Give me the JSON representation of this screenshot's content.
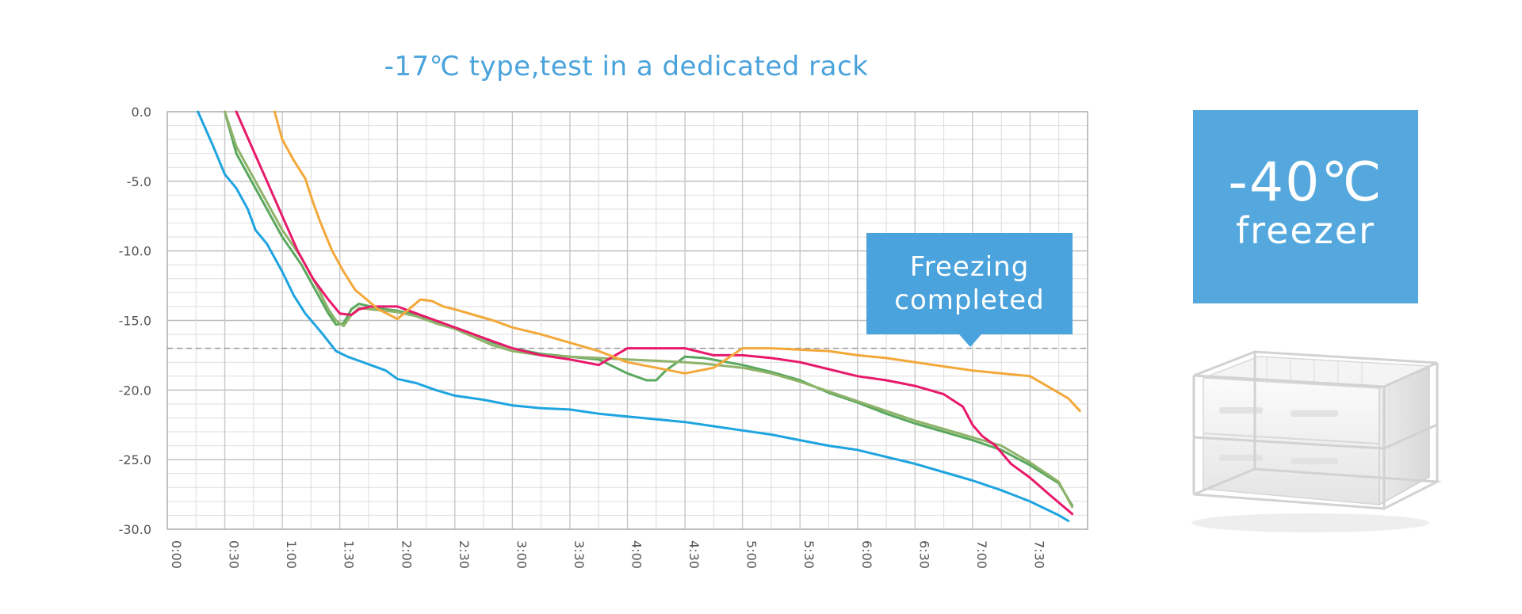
{
  "colors": {
    "title": "#4aa3dc",
    "callout_bg": "#4aa3dc",
    "badge_bg": "#55a8dd",
    "grid": "#c8c8c8",
    "threshold": "#9a9a9a"
  },
  "callout": {
    "line1": "Freezing",
    "line2": "completed"
  },
  "freezer_badge": {
    "temperature": "-40℃",
    "label": "freezer"
  },
  "chart_data": {
    "type": "line",
    "title": "-17℃ type,test in a dedicated rack",
    "xlabel": "",
    "ylabel": "",
    "x_unit": "minutes",
    "xlim": [
      0,
      480
    ],
    "ylim": [
      -30,
      0
    ],
    "x_ticks": [
      0,
      30,
      60,
      90,
      120,
      150,
      180,
      210,
      240,
      270,
      300,
      330,
      360,
      390,
      420,
      450
    ],
    "x_tick_labels": [
      "0:00",
      "0:30",
      "1:00",
      "1:30",
      "2:00",
      "2:30",
      "3:00",
      "3:30",
      "4:00",
      "4:30",
      "5:00",
      "5:30",
      "6:00",
      "6:30",
      "7:00",
      "7:30"
    ],
    "y_ticks": [
      0,
      -5,
      -10,
      -15,
      -20,
      -25,
      -30
    ],
    "y_tick_labels": [
      "0.0",
      "-5.0",
      "-10.0",
      "-15.0",
      "-20.0",
      "-25.0",
      "-30.0"
    ],
    "grid": true,
    "reference_line": {
      "y": -17,
      "style": "dashed"
    },
    "series": [
      {
        "color": "#1ea4e0",
        "x": [
          16,
          24,
          30,
          36,
          42,
          46,
          52,
          60,
          66,
          72,
          80,
          88,
          94,
          100,
          106,
          114,
          120,
          130,
          140,
          150,
          165,
          180,
          195,
          210,
          225,
          240,
          255,
          270,
          285,
          300,
          315,
          330,
          345,
          360,
          375,
          390,
          405,
          420,
          435,
          450,
          465,
          470
        ],
        "y": [
          0,
          -2.5,
          -4.5,
          -5.5,
          -7,
          -8.5,
          -9.5,
          -11.5,
          -13.2,
          -14.5,
          -15.8,
          -17.2,
          -17.6,
          -17.9,
          -18.2,
          -18.6,
          -19.2,
          -19.5,
          -20,
          -20.4,
          -20.7,
          -21.1,
          -21.3,
          -21.4,
          -21.7,
          -21.9,
          -22.1,
          -22.3,
          -22.6,
          -22.9,
          -23.2,
          -23.6,
          -24,
          -24.3,
          -24.8,
          -25.3,
          -25.9,
          -26.5,
          -27.2,
          -28,
          -29,
          -29.4
        ]
      },
      {
        "color": "#5aa85e",
        "x": [
          30,
          36,
          42,
          50,
          60,
          70,
          78,
          84,
          88,
          92,
          96,
          100,
          106,
          114,
          120,
          130,
          140,
          150,
          160,
          170,
          180,
          195,
          210,
          225,
          240,
          250,
          255,
          260,
          270,
          280,
          300,
          315,
          330,
          345,
          360,
          375,
          390,
          405,
          420,
          435,
          450,
          465,
          472
        ],
        "y": [
          0,
          -3,
          -4.5,
          -6.5,
          -9,
          -11,
          -13,
          -14.5,
          -15.3,
          -15.2,
          -14.2,
          -13.8,
          -14,
          -14.2,
          -14.3,
          -14.6,
          -15.1,
          -15.5,
          -16,
          -16.6,
          -17,
          -17.4,
          -17.6,
          -17.8,
          -18.8,
          -19.3,
          -19.3,
          -18.6,
          -17.6,
          -17.7,
          -18.2,
          -18.7,
          -19.3,
          -20.2,
          -20.9,
          -21.7,
          -22.4,
          -23,
          -23.6,
          -24.3,
          -25.4,
          -26.7,
          -28.3
        ]
      },
      {
        "color": "#8fb36a",
        "x": [
          30,
          36,
          42,
          50,
          60,
          70,
          78,
          84,
          88,
          92,
          96,
          100,
          106,
          114,
          120,
          130,
          140,
          150,
          160,
          170,
          180,
          195,
          210,
          225,
          240,
          255,
          270,
          280,
          300,
          315,
          330,
          345,
          360,
          375,
          390,
          405,
          420,
          435,
          450,
          465,
          472
        ],
        "y": [
          0,
          -2.5,
          -4,
          -6,
          -8.5,
          -10.5,
          -12.5,
          -14.2,
          -15,
          -15.4,
          -14.6,
          -14.1,
          -14.2,
          -14.3,
          -14.4,
          -14.7,
          -15.2,
          -15.6,
          -16.2,
          -16.8,
          -17.2,
          -17.5,
          -17.6,
          -17.7,
          -17.8,
          -17.9,
          -18,
          -18.1,
          -18.4,
          -18.8,
          -19.4,
          -20.1,
          -20.8,
          -21.5,
          -22.2,
          -22.8,
          -23.4,
          -24,
          -25.2,
          -26.6,
          -28.4
        ]
      },
      {
        "color": "#e8196a",
        "x": [
          36,
          44,
          52,
          60,
          68,
          76,
          84,
          90,
          96,
          100,
          106,
          112,
          120,
          130,
          140,
          150,
          160,
          170,
          180,
          195,
          210,
          225,
          240,
          255,
          270,
          285,
          300,
          315,
          330,
          345,
          360,
          375,
          390,
          405,
          415,
          420,
          425,
          432,
          440,
          450,
          460,
          472
        ],
        "y": [
          0,
          -2.5,
          -5,
          -7.5,
          -10,
          -12,
          -13.5,
          -14.5,
          -14.6,
          -14.2,
          -14,
          -14,
          -14,
          -14.5,
          -15,
          -15.5,
          -16,
          -16.5,
          -17,
          -17.5,
          -17.8,
          -18.2,
          -17,
          -17,
          -17,
          -17.5,
          -17.5,
          -17.7,
          -18,
          -18.5,
          -19,
          -19.3,
          -19.7,
          -20.3,
          -21.2,
          -22.5,
          -23.3,
          -24,
          -25.3,
          -26.3,
          -27.5,
          -28.9
        ]
      },
      {
        "color": "#f3a83a",
        "x": [
          56,
          60,
          66,
          72,
          76,
          80,
          86,
          92,
          98,
          104,
          110,
          116,
          120,
          126,
          132,
          138,
          144,
          150,
          160,
          170,
          180,
          195,
          210,
          225,
          240,
          255,
          270,
          285,
          300,
          315,
          330,
          345,
          360,
          375,
          390,
          405,
          420,
          435,
          450,
          460,
          470,
          476
        ],
        "y": [
          0,
          -2,
          -3.5,
          -4.8,
          -6.5,
          -8,
          -10,
          -11.5,
          -12.8,
          -13.5,
          -14.2,
          -14.6,
          -14.9,
          -14.2,
          -13.5,
          -13.6,
          -14,
          -14.2,
          -14.6,
          -15,
          -15.5,
          -16,
          -16.6,
          -17.2,
          -18,
          -18.4,
          -18.8,
          -18.4,
          -17,
          -17,
          -17.1,
          -17.2,
          -17.5,
          -17.7,
          -18,
          -18.3,
          -18.6,
          -18.8,
          -19,
          -19.8,
          -20.6,
          -21.5
        ]
      }
    ]
  }
}
